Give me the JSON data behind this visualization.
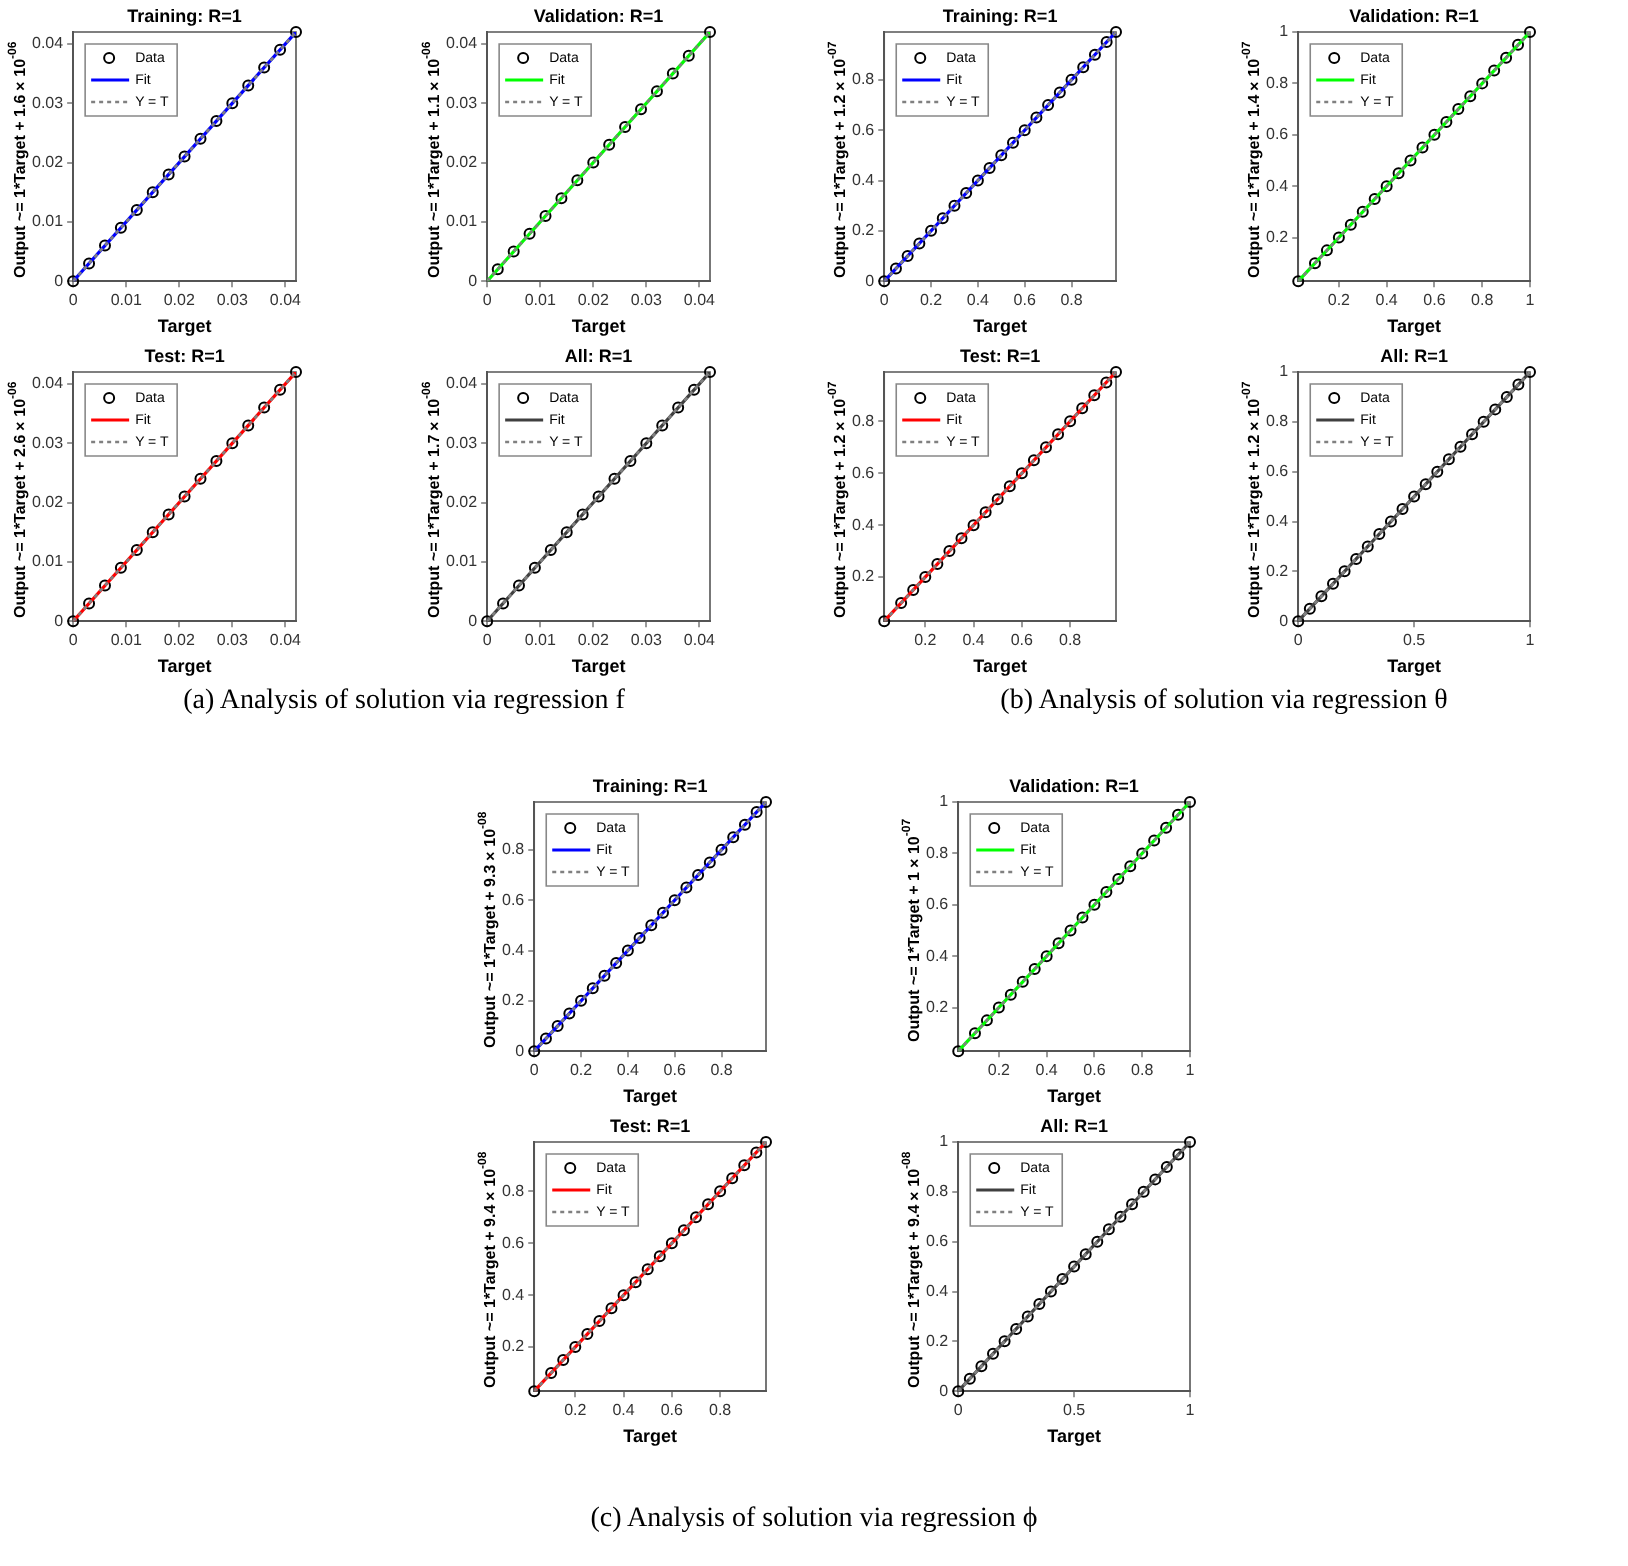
{
  "chart_data": [
    {
      "type": "scatter",
      "title": "Training: R=1",
      "xlabel": "Target",
      "ylabel": "Output ~= 1*Target + 1.6×10$^{-06}$",
      "xlim": [
        0,
        0.042
      ],
      "ylim": [
        0,
        0.042
      ],
      "xticks": [
        0,
        0.01,
        0.02,
        0.03,
        0.04
      ],
      "yticks": [
        0,
        0.01,
        0.02,
        0.03,
        0.04
      ],
      "legend": "top left",
      "annotations": [
        "(a) Analysis of solution via regression f"
      ],
      "series": [
        {
          "name": "Data",
          "marker": "circle",
          "color": "#000000",
          "x": [
            0,
            0.003,
            0.006,
            0.009,
            0.012,
            0.015,
            0.018,
            0.021,
            0.024,
            0.027,
            0.03,
            0.033,
            0.036,
            0.039,
            0.042
          ],
          "values": [
            0,
            0.003,
            0.006,
            0.009,
            0.012,
            0.015,
            0.018,
            0.021,
            0.024,
            0.027,
            0.03,
            0.033,
            0.036,
            0.039,
            0.042
          ]
        },
        {
          "name": "Fit",
          "type": "line",
          "color": "#0000ff",
          "x": [
            0,
            0.042
          ],
          "values": [
            0,
            0.042
          ]
        },
        {
          "name": "Y = T",
          "type": "line",
          "line_style": "dotted",
          "color": "#808080",
          "x": [
            0,
            0.042
          ],
          "values": [
            0,
            0.042
          ]
        }
      ]
    },
    {
      "type": "scatter",
      "title": "Validation: R=1",
      "xlabel": "Target",
      "ylabel": "Output ~= 1*Target + 1.1×10$^{-06}$",
      "xlim": [
        0,
        0.042
      ],
      "ylim": [
        0,
        0.042
      ],
      "xticks": [
        0,
        0.01,
        0.02,
        0.03,
        0.04
      ],
      "yticks": [
        0,
        0.01,
        0.02,
        0.03,
        0.04
      ],
      "legend": "top left",
      "series": [
        {
          "name": "Data",
          "marker": "circle",
          "color": "#000000",
          "x": [
            0.002,
            0.005,
            0.008,
            0.011,
            0.014,
            0.017,
            0.02,
            0.023,
            0.026,
            0.029,
            0.032,
            0.035,
            0.038,
            0.042
          ],
          "values": [
            0.002,
            0.005,
            0.008,
            0.011,
            0.014,
            0.017,
            0.02,
            0.023,
            0.026,
            0.029,
            0.032,
            0.035,
            0.038,
            0.042
          ]
        },
        {
          "name": "Fit",
          "type": "line",
          "color": "#00ff00",
          "x": [
            0,
            0.042
          ],
          "values": [
            0,
            0.042
          ]
        },
        {
          "name": "Y = T",
          "type": "line",
          "line_style": "dotted",
          "color": "#808080",
          "x": [
            0,
            0.042
          ],
          "values": [
            0,
            0.042
          ]
        }
      ]
    },
    {
      "type": "scatter",
      "title": "Test: R=1",
      "xlabel": "Target",
      "ylabel": "Output ~= 1*Target + 2.6×10$^{-06}$",
      "xlim": [
        0,
        0.042
      ],
      "ylim": [
        0,
        0.042
      ],
      "xticks": [
        0,
        0.01,
        0.02,
        0.03,
        0.04
      ],
      "yticks": [
        0,
        0.01,
        0.02,
        0.03,
        0.04
      ],
      "legend": "top left",
      "series": [
        {
          "name": "Data",
          "marker": "circle",
          "color": "#000000",
          "x": [
            0,
            0.003,
            0.006,
            0.009,
            0.012,
            0.015,
            0.018,
            0.021,
            0.024,
            0.027,
            0.03,
            0.033,
            0.036,
            0.039,
            0.042
          ],
          "values": [
            0,
            0.003,
            0.006,
            0.009,
            0.012,
            0.015,
            0.018,
            0.021,
            0.024,
            0.027,
            0.03,
            0.033,
            0.036,
            0.039,
            0.042
          ]
        },
        {
          "name": "Fit",
          "type": "line",
          "color": "#ff0000",
          "x": [
            0,
            0.042
          ],
          "values": [
            0,
            0.042
          ]
        },
        {
          "name": "Y = T",
          "type": "line",
          "line_style": "dotted",
          "color": "#808080",
          "x": [
            0,
            0.042
          ],
          "values": [
            0,
            0.042
          ]
        }
      ]
    },
    {
      "type": "scatter",
      "title": "All: R=1",
      "xlabel": "Target",
      "ylabel": "Output ~= 1*Target + 1.7×10$^{-06}$",
      "xlim": [
        0,
        0.042
      ],
      "ylim": [
        0,
        0.042
      ],
      "xticks": [
        0,
        0.01,
        0.02,
        0.03,
        0.04
      ],
      "yticks": [
        0,
        0.01,
        0.02,
        0.03,
        0.04
      ],
      "legend": "top left",
      "series": [
        {
          "name": "Data",
          "marker": "circle",
          "color": "#000000",
          "x": [
            0,
            0.003,
            0.006,
            0.009,
            0.012,
            0.015,
            0.018,
            0.021,
            0.024,
            0.027,
            0.03,
            0.033,
            0.036,
            0.039,
            0.042
          ],
          "values": [
            0,
            0.003,
            0.006,
            0.009,
            0.012,
            0.015,
            0.018,
            0.021,
            0.024,
            0.027,
            0.03,
            0.033,
            0.036,
            0.039,
            0.042
          ]
        },
        {
          "name": "Fit",
          "type": "line",
          "color": "#404040",
          "x": [
            0,
            0.042
          ],
          "values": [
            0,
            0.042
          ]
        },
        {
          "name": "Y = T",
          "type": "line",
          "line_style": "dotted",
          "color": "#808080",
          "x": [
            0,
            0.042
          ],
          "values": [
            0,
            0.042
          ]
        }
      ]
    },
    {
      "type": "scatter",
      "title": "Training: R=1",
      "xlabel": "Target",
      "ylabel": "Output ~= 1*Target + 1.2×10$^{-07}$",
      "xlim": [
        0,
        0.99
      ],
      "ylim": [
        0,
        0.99
      ],
      "xticks": [
        0,
        0.2,
        0.4,
        0.6,
        0.8
      ],
      "yticks": [
        0,
        0.2,
        0.4,
        0.6,
        0.8
      ],
      "legend": "top left",
      "annotations": [
        "(b) Analysis of solution via regression θ"
      ],
      "series": [
        {
          "name": "Data",
          "marker": "circle",
          "color": "#000000",
          "x": [
            0,
            0.05,
            0.1,
            0.15,
            0.2,
            0.25,
            0.3,
            0.35,
            0.4,
            0.45,
            0.5,
            0.55,
            0.6,
            0.65,
            0.7,
            0.75,
            0.8,
            0.85,
            0.9,
            0.95,
            0.99
          ],
          "values": [
            0,
            0.05,
            0.1,
            0.15,
            0.2,
            0.25,
            0.3,
            0.35,
            0.4,
            0.45,
            0.5,
            0.55,
            0.6,
            0.65,
            0.7,
            0.75,
            0.8,
            0.85,
            0.9,
            0.95,
            0.99
          ]
        },
        {
          "name": "Fit",
          "type": "line",
          "color": "#0000ff",
          "x": [
            0,
            0.99
          ],
          "values": [
            0,
            0.99
          ]
        },
        {
          "name": "Y = T",
          "type": "line",
          "line_style": "dotted",
          "color": "#808080",
          "x": [
            0,
            0.99
          ],
          "values": [
            0,
            0.99
          ]
        }
      ]
    },
    {
      "type": "scatter",
      "title": "Validation: R=1",
      "xlabel": "Target",
      "ylabel": "Output ~= 1*Target + 1.4×10$^{-07}$",
      "xlim": [
        0.03,
        1
      ],
      "ylim": [
        0.03,
        1
      ],
      "xticks": [
        0.2,
        0.4,
        0.6,
        0.8,
        1
      ],
      "yticks": [
        0.2,
        0.4,
        0.6,
        0.8,
        1
      ],
      "legend": "top left",
      "series": [
        {
          "name": "Data",
          "marker": "circle",
          "color": "#000000",
          "x": [
            0.03,
            0.1,
            0.15,
            0.2,
            0.25,
            0.3,
            0.35,
            0.4,
            0.45,
            0.5,
            0.55,
            0.6,
            0.65,
            0.7,
            0.75,
            0.8,
            0.85,
            0.9,
            0.95,
            1
          ],
          "values": [
            0.03,
            0.1,
            0.15,
            0.2,
            0.25,
            0.3,
            0.35,
            0.4,
            0.45,
            0.5,
            0.55,
            0.6,
            0.65,
            0.7,
            0.75,
            0.8,
            0.85,
            0.9,
            0.95,
            1
          ]
        },
        {
          "name": "Fit",
          "type": "line",
          "color": "#00ff00",
          "x": [
            0.03,
            1
          ],
          "values": [
            0.03,
            1
          ]
        },
        {
          "name": "Y = T",
          "type": "line",
          "line_style": "dotted",
          "color": "#808080",
          "x": [
            0.03,
            1
          ],
          "values": [
            0.03,
            1
          ]
        }
      ]
    },
    {
      "type": "scatter",
      "title": "Test: R=1",
      "xlabel": "Target",
      "ylabel": "Output ~= 1*Target + 1.2×10$^{-07}$",
      "xlim": [
        0.03,
        0.99
      ],
      "ylim": [
        0.03,
        0.99
      ],
      "xticks": [
        0.2,
        0.4,
        0.6,
        0.8
      ],
      "yticks": [
        0.2,
        0.4,
        0.6,
        0.8
      ],
      "legend": "top left",
      "series": [
        {
          "name": "Data",
          "marker": "circle",
          "color": "#000000",
          "x": [
            0.03,
            0.1,
            0.15,
            0.2,
            0.25,
            0.3,
            0.35,
            0.4,
            0.45,
            0.5,
            0.55,
            0.6,
            0.65,
            0.7,
            0.75,
            0.8,
            0.85,
            0.9,
            0.95,
            0.99
          ],
          "values": [
            0.03,
            0.1,
            0.15,
            0.2,
            0.25,
            0.3,
            0.35,
            0.4,
            0.45,
            0.5,
            0.55,
            0.6,
            0.65,
            0.7,
            0.75,
            0.8,
            0.85,
            0.9,
            0.95,
            0.99
          ]
        },
        {
          "name": "Fit",
          "type": "line",
          "color": "#ff0000",
          "x": [
            0.03,
            0.99
          ],
          "values": [
            0.03,
            0.99
          ]
        },
        {
          "name": "Y = T",
          "type": "line",
          "line_style": "dotted",
          "color": "#808080",
          "x": [
            0.03,
            0.99
          ],
          "values": [
            0.03,
            0.99
          ]
        }
      ]
    },
    {
      "type": "scatter",
      "title": "All: R=1",
      "xlabel": "Target",
      "ylabel": "Output ~= 1*Target + 1.2×10$^{-07}$",
      "xlim": [
        0,
        1
      ],
      "ylim": [
        0,
        1
      ],
      "xticks": [
        0,
        0.5,
        1
      ],
      "yticks": [
        0,
        0.2,
        0.4,
        0.6,
        0.8,
        1
      ],
      "legend": "top left",
      "series": [
        {
          "name": "Data",
          "marker": "circle",
          "color": "#000000",
          "x": [
            0,
            0.05,
            0.1,
            0.15,
            0.2,
            0.25,
            0.3,
            0.35,
            0.4,
            0.45,
            0.5,
            0.55,
            0.6,
            0.65,
            0.7,
            0.75,
            0.8,
            0.85,
            0.9,
            0.95,
            1
          ],
          "values": [
            0,
            0.05,
            0.1,
            0.15,
            0.2,
            0.25,
            0.3,
            0.35,
            0.4,
            0.45,
            0.5,
            0.55,
            0.6,
            0.65,
            0.7,
            0.75,
            0.8,
            0.85,
            0.9,
            0.95,
            1
          ]
        },
        {
          "name": "Fit",
          "type": "line",
          "color": "#404040",
          "x": [
            0,
            1
          ],
          "values": [
            0,
            1
          ]
        },
        {
          "name": "Y = T",
          "type": "line",
          "line_style": "dotted",
          "color": "#808080",
          "x": [
            0,
            1
          ],
          "values": [
            0,
            1
          ]
        }
      ]
    },
    {
      "type": "scatter",
      "title": "Training: R=1",
      "xlabel": "Target",
      "ylabel": "Output ~= 1*Target + 9.3×10$^{-08}$",
      "xlim": [
        0,
        0.99
      ],
      "ylim": [
        0,
        0.99
      ],
      "xticks": [
        0,
        0.2,
        0.4,
        0.6,
        0.8
      ],
      "yticks": [
        0,
        0.2,
        0.4,
        0.6,
        0.8
      ],
      "legend": "top left",
      "annotations": [
        "(c) Analysis of solution via regression ϕ"
      ],
      "series": [
        {
          "name": "Data",
          "marker": "circle",
          "color": "#000000",
          "x": [
            0,
            0.05,
            0.1,
            0.15,
            0.2,
            0.25,
            0.3,
            0.35,
            0.4,
            0.45,
            0.5,
            0.55,
            0.6,
            0.65,
            0.7,
            0.75,
            0.8,
            0.85,
            0.9,
            0.95,
            0.99
          ],
          "values": [
            0,
            0.05,
            0.1,
            0.15,
            0.2,
            0.25,
            0.3,
            0.35,
            0.4,
            0.45,
            0.5,
            0.55,
            0.6,
            0.65,
            0.7,
            0.75,
            0.8,
            0.85,
            0.9,
            0.95,
            0.99
          ]
        },
        {
          "name": "Fit",
          "type": "line",
          "color": "#0000ff",
          "x": [
            0,
            0.99
          ],
          "values": [
            0,
            0.99
          ]
        },
        {
          "name": "Y = T",
          "type": "line",
          "line_style": "dotted",
          "color": "#808080",
          "x": [
            0,
            0.99
          ],
          "values": [
            0,
            0.99
          ]
        }
      ]
    },
    {
      "type": "scatter",
      "title": "Validation: R=1",
      "xlabel": "Target",
      "ylabel": "Output ~= 1*Target + 1×10$^{-07}$",
      "xlim": [
        0.03,
        1
      ],
      "ylim": [
        0.03,
        1
      ],
      "xticks": [
        0.2,
        0.4,
        0.6,
        0.8,
        1
      ],
      "yticks": [
        0.2,
        0.4,
        0.6,
        0.8,
        1
      ],
      "legend": "top left",
      "series": [
        {
          "name": "Data",
          "marker": "circle",
          "color": "#000000",
          "x": [
            0.03,
            0.1,
            0.15,
            0.2,
            0.25,
            0.3,
            0.35,
            0.4,
            0.45,
            0.5,
            0.55,
            0.6,
            0.65,
            0.7,
            0.75,
            0.8,
            0.85,
            0.9,
            0.95,
            1
          ],
          "values": [
            0.03,
            0.1,
            0.15,
            0.2,
            0.25,
            0.3,
            0.35,
            0.4,
            0.45,
            0.5,
            0.55,
            0.6,
            0.65,
            0.7,
            0.75,
            0.8,
            0.85,
            0.9,
            0.95,
            1
          ]
        },
        {
          "name": "Fit",
          "type": "line",
          "color": "#00ff00",
          "x": [
            0.03,
            1
          ],
          "values": [
            0.03,
            1
          ]
        },
        {
          "name": "Y = T",
          "type": "line",
          "line_style": "dotted",
          "color": "#808080",
          "x": [
            0.03,
            1
          ],
          "values": [
            0.03,
            1
          ]
        }
      ]
    },
    {
      "type": "scatter",
      "title": "Test: R=1",
      "xlabel": "Target",
      "ylabel": "Output ~= 1*Target + 9.4×10$^{-08}$",
      "xlim": [
        0.03,
        0.99
      ],
      "ylim": [
        0.03,
        0.99
      ],
      "xticks": [
        0.2,
        0.4,
        0.6,
        0.8
      ],
      "yticks": [
        0.2,
        0.4,
        0.6,
        0.8
      ],
      "legend": "top left",
      "series": [
        {
          "name": "Data",
          "marker": "circle",
          "color": "#000000",
          "x": [
            0.03,
            0.1,
            0.15,
            0.2,
            0.25,
            0.3,
            0.35,
            0.4,
            0.45,
            0.5,
            0.55,
            0.6,
            0.65,
            0.7,
            0.75,
            0.8,
            0.85,
            0.9,
            0.95,
            0.99
          ],
          "values": [
            0.03,
            0.1,
            0.15,
            0.2,
            0.25,
            0.3,
            0.35,
            0.4,
            0.45,
            0.5,
            0.55,
            0.6,
            0.65,
            0.7,
            0.75,
            0.8,
            0.85,
            0.9,
            0.95,
            0.99
          ]
        },
        {
          "name": "Fit",
          "type": "line",
          "color": "#ff0000",
          "x": [
            0.03,
            0.99
          ],
          "values": [
            0.03,
            0.99
          ]
        },
        {
          "name": "Y = T",
          "type": "line",
          "line_style": "dotted",
          "color": "#808080",
          "x": [
            0.03,
            0.99
          ],
          "values": [
            0.03,
            0.99
          ]
        }
      ]
    },
    {
      "type": "scatter",
      "title": "All: R=1",
      "xlabel": "Target",
      "ylabel": "Output ~= 1*Target + 9.4×10$^{-08}$",
      "xlim": [
        0,
        1
      ],
      "ylim": [
        0,
        1
      ],
      "xticks": [
        0,
        0.5,
        1
      ],
      "yticks": [
        0,
        0.2,
        0.4,
        0.6,
        0.8,
        1
      ],
      "legend": "top left",
      "series": [
        {
          "name": "Data",
          "marker": "circle",
          "color": "#000000",
          "x": [
            0,
            0.05,
            0.1,
            0.15,
            0.2,
            0.25,
            0.3,
            0.35,
            0.4,
            0.45,
            0.5,
            0.55,
            0.6,
            0.65,
            0.7,
            0.75,
            0.8,
            0.85,
            0.9,
            0.95,
            1
          ],
          "values": [
            0,
            0.05,
            0.1,
            0.15,
            0.2,
            0.25,
            0.3,
            0.35,
            0.4,
            0.45,
            0.5,
            0.55,
            0.6,
            0.65,
            0.7,
            0.75,
            0.8,
            0.85,
            0.9,
            0.95,
            1
          ]
        },
        {
          "name": "Fit",
          "type": "line",
          "color": "#404040",
          "x": [
            0,
            1
          ],
          "values": [
            0,
            1
          ]
        },
        {
          "name": "Y = T",
          "type": "line",
          "line_style": "dotted",
          "color": "#808080",
          "x": [
            0,
            1
          ],
          "values": [
            0,
            1
          ]
        }
      ]
    }
  ]
}
